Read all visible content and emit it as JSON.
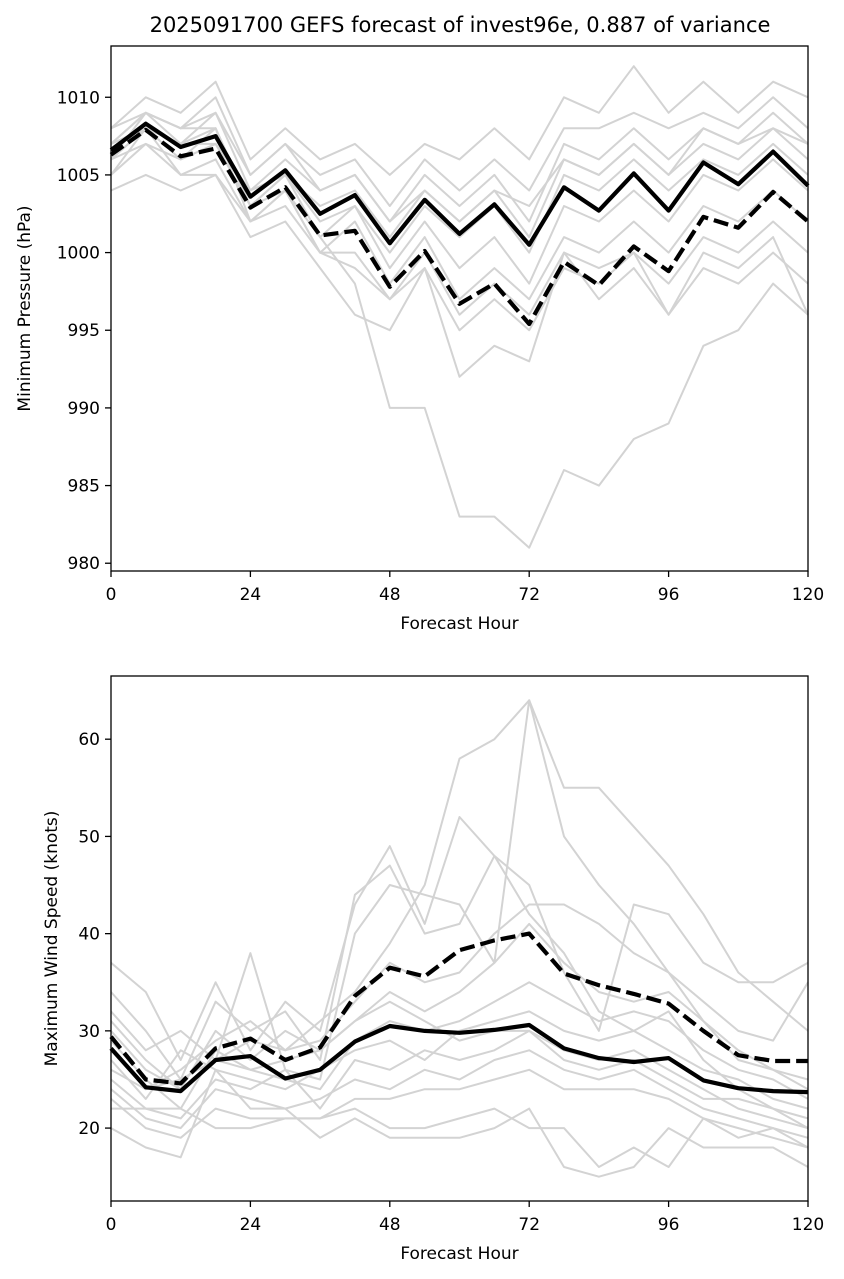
{
  "title": "2025091700 GEFS forecast of invest96e, 0.887 of variance",
  "chart_data": [
    {
      "type": "line",
      "title": "2025091700 GEFS forecast of invest96e, 0.887 of variance",
      "xlabel": "Forecast Hour",
      "ylabel": "Minimum Pressure (hPa)",
      "xlim": [
        0,
        120
      ],
      "ylim": [
        979.5,
        1013.3
      ],
      "xticks": [
        0,
        24,
        48,
        72,
        96,
        120
      ],
      "yticks": [
        980,
        985,
        990,
        995,
        1000,
        1005,
        1010
      ],
      "grid": false,
      "x": [
        0,
        6,
        12,
        18,
        24,
        30,
        36,
        42,
        48,
        54,
        60,
        66,
        72,
        78,
        84,
        90,
        96,
        102,
        108,
        114,
        120
      ],
      "colors": {
        "ensemble": "#d3d3d3",
        "highlight": "#000000"
      },
      "series": [
        {
          "role": "ensemble",
          "values": [
            1008,
            1010,
            1009,
            1011,
            1006,
            1008,
            1006,
            1007,
            1005,
            1007,
            1006,
            1008,
            1006,
            1010,
            1009,
            1012,
            1009,
            1011,
            1009,
            1011,
            1010
          ]
        },
        {
          "role": "ensemble",
          "values": [
            1007,
            1009,
            1008,
            1010,
            1005,
            1007,
            1005,
            1006,
            1003,
            1006,
            1004,
            1006,
            1004,
            1008,
            1008,
            1009,
            1008,
            1009,
            1008,
            1010,
            1008
          ]
        },
        {
          "role": "ensemble",
          "values": [
            1006,
            1009,
            1007,
            1009,
            1004,
            1006,
            1004,
            1005,
            1002,
            1005,
            1003,
            1005,
            1002,
            1007,
            1006,
            1008,
            1006,
            1008,
            1007,
            1009,
            1007
          ]
        },
        {
          "role": "ensemble",
          "values": [
            1006,
            1008,
            1007,
            1008,
            1003,
            1005,
            1003,
            1004,
            1001,
            1004,
            1002,
            1004,
            1001,
            1006,
            1005,
            1007,
            1005,
            1007,
            1006,
            1008,
            1006
          ]
        },
        {
          "role": "ensemble",
          "values": [
            1005,
            1008,
            1006,
            1008,
            1002,
            1004,
            1001,
            1003,
            1000,
            1003,
            1001,
            1003,
            1000,
            1005,
            1004,
            1006,
            1004,
            1006,
            1005,
            1007,
            1005
          ]
        },
        {
          "role": "ensemble",
          "values": [
            1007,
            1008,
            1007,
            1007,
            1004,
            1005,
            1002,
            1003,
            999,
            1002,
            999,
            1001,
            998,
            1003,
            1002,
            1004,
            1002,
            1005,
            1004,
            1006,
            1004
          ]
        },
        {
          "role": "ensemble",
          "values": [
            1006,
            1007,
            1006,
            1007,
            1003,
            1004,
            1000,
            1002,
            998,
            1001,
            997,
            999,
            997,
            1001,
            1000,
            1002,
            1000,
            1003,
            1002,
            1004,
            1002
          ]
        },
        {
          "role": "ensemble",
          "values": [
            1005,
            1007,
            1005,
            1006,
            1002,
            1003,
            1000,
            1000,
            997,
            999,
            995,
            997,
            995,
            999,
            998,
            1000,
            998,
            1001,
            1000,
            1002,
            1000
          ]
        },
        {
          "role": "ensemble",
          "values": [
            1004,
            1005,
            1004,
            1005,
            1001,
            1002,
            999,
            996,
            995,
            999,
            992,
            994,
            993,
            1000,
            997,
            999,
            996,
            999,
            998,
            1000,
            998
          ]
        },
        {
          "role": "ensemble",
          "values": [
            1006,
            1008,
            1005,
            1005,
            1002,
            1004,
            1000,
            999,
            997,
            1000,
            996,
            998,
            996,
            1000,
            999,
            1000,
            996,
            1000,
            999,
            1001,
            996
          ]
        },
        {
          "role": "ensemble",
          "values": [
            1007,
            1009,
            1008,
            1008,
            1003,
            1005,
            1001,
            998,
            990,
            990,
            983,
            983,
            981,
            986,
            985,
            988,
            989,
            994,
            995,
            998,
            996
          ]
        },
        {
          "role": "ensemble",
          "values": [
            1008,
            1009,
            1008,
            1009,
            1005,
            1007,
            1004,
            1005,
            1002,
            1004,
            1002,
            1004,
            1003,
            1006,
            1005,
            1007,
            1005,
            1008,
            1007,
            1008,
            1007
          ]
        },
        {
          "role": "highlight",
          "style": "solid",
          "values": [
            1006.6,
            1008.3,
            1006.8,
            1007.5,
            1003.6,
            1005.3,
            1002.5,
            1003.7,
            1000.6,
            1003.4,
            1001.2,
            1003.1,
            1000.5,
            1004.2,
            1002.7,
            1005.1,
            1002.7,
            1005.8,
            1004.4,
            1006.5,
            1004.3
          ]
        },
        {
          "role": "highlight",
          "style": "dashed",
          "values": [
            1006.3,
            1007.9,
            1006.2,
            1006.7,
            1002.9,
            1004.2,
            1001.1,
            1001.4,
            997.8,
            1000.1,
            996.7,
            998.0,
            995.4,
            999.4,
            997.9,
            1000.4,
            998.8,
            1002.3,
            1001.6,
            1003.9,
            1002.0
          ]
        }
      ]
    },
    {
      "type": "line",
      "xlabel": "Forecast Hour",
      "ylabel": "Maximum Wind Speed (knots)",
      "xlim": [
        0,
        120
      ],
      "ylim": [
        12.5,
        66.5
      ],
      "xticks": [
        0,
        24,
        48,
        72,
        96,
        120
      ],
      "yticks": [
        20,
        30,
        40,
        50,
        60
      ],
      "grid": false,
      "x": [
        0,
        6,
        12,
        18,
        24,
        30,
        36,
        42,
        48,
        54,
        60,
        66,
        72,
        78,
        84,
        90,
        96,
        102,
        108,
        114,
        120
      ],
      "colors": {
        "ensemble": "#d3d3d3",
        "highlight": "#000000"
      },
      "series": [
        {
          "role": "ensemble",
          "values": [
            37,
            34,
            27,
            35,
            28,
            33,
            30,
            43,
            49,
            41,
            52,
            48,
            42,
            38,
            32,
            30,
            32,
            27,
            24,
            22,
            20
          ]
        },
        {
          "role": "ensemble",
          "values": [
            34,
            30,
            25,
            33,
            30,
            32,
            27,
            44,
            47,
            40,
            41,
            48,
            45,
            36,
            30,
            43,
            42,
            37,
            35,
            35,
            37
          ]
        },
        {
          "role": "ensemble",
          "values": [
            30,
            26,
            24,
            27,
            38,
            26,
            25,
            40,
            45,
            44,
            43,
            37,
            64,
            55,
            55,
            51,
            47,
            42,
            36,
            33,
            30
          ]
        },
        {
          "role": "ensemble",
          "values": [
            32,
            28,
            30,
            27,
            29,
            28,
            31,
            34,
            39,
            45,
            58,
            60,
            64,
            50,
            45,
            41,
            36,
            31,
            28,
            26,
            24
          ]
        },
        {
          "role": "ensemble",
          "values": [
            28,
            24,
            26,
            29,
            31,
            28,
            29,
            33,
            37,
            35,
            36,
            40,
            43,
            43,
            41,
            38,
            36,
            33,
            30,
            29,
            35
          ]
        },
        {
          "role": "ensemble",
          "values": [
            31,
            27,
            24,
            30,
            27,
            30,
            28,
            31,
            34,
            32,
            34,
            37,
            41,
            37,
            34,
            33,
            34,
            31,
            27,
            26,
            25
          ]
        },
        {
          "role": "ensemble",
          "values": [
            29,
            25,
            22,
            28,
            26,
            25,
            24,
            29,
            31,
            30,
            31,
            33,
            35,
            33,
            31,
            32,
            31,
            28,
            26,
            25,
            23
          ]
        },
        {
          "role": "ensemble",
          "values": [
            27,
            23,
            28,
            26,
            25,
            24,
            26,
            28,
            29,
            27,
            30,
            31,
            32,
            30,
            29,
            30,
            28,
            26,
            25,
            23,
            22
          ]
        },
        {
          "role": "ensemble",
          "values": [
            25,
            22,
            21,
            25,
            24,
            26,
            22,
            27,
            26,
            28,
            27,
            28,
            30,
            28,
            27,
            28,
            26,
            24,
            22,
            21,
            20
          ]
        },
        {
          "role": "ensemble",
          "values": [
            24,
            21,
            20,
            24,
            23,
            22,
            23,
            25,
            24,
            26,
            25,
            27,
            28,
            26,
            25,
            26,
            24,
            22,
            21,
            20,
            19
          ]
        },
        {
          "role": "ensemble",
          "values": [
            23,
            20,
            19,
            22,
            21,
            21,
            21,
            23,
            23,
            24,
            24,
            25,
            26,
            24,
            24,
            24,
            23,
            21,
            20,
            19,
            18
          ]
        },
        {
          "role": "ensemble",
          "values": [
            20,
            18,
            17,
            26,
            22,
            22,
            19,
            21,
            19,
            19,
            19,
            20,
            22,
            16,
            15,
            16,
            20,
            18,
            18,
            18,
            16
          ]
        },
        {
          "role": "ensemble",
          "values": [
            22,
            22,
            22,
            20,
            20,
            21,
            21,
            22,
            20,
            20,
            21,
            22,
            20,
            20,
            16,
            18,
            16,
            21,
            19,
            20,
            18
          ]
        },
        {
          "role": "ensemble",
          "values": [
            26,
            24,
            25,
            27,
            26,
            27,
            28,
            31,
            33,
            31,
            29,
            30,
            30,
            27,
            26,
            27,
            25,
            23,
            23,
            22,
            21
          ]
        },
        {
          "role": "highlight",
          "style": "solid",
          "values": [
            28.2,
            24.2,
            23.8,
            27.0,
            27.4,
            25.1,
            26.0,
            28.9,
            30.5,
            30.0,
            29.8,
            30.1,
            30.6,
            28.2,
            27.2,
            26.8,
            27.2,
            24.9,
            24.1,
            23.8,
            23.7
          ]
        },
        {
          "role": "highlight",
          "style": "dashed",
          "values": [
            29.4,
            25.0,
            24.6,
            28.2,
            29.2,
            27.0,
            28.3,
            33.6,
            36.5,
            35.6,
            38.3,
            39.3,
            40.0,
            35.9,
            34.7,
            33.8,
            32.8,
            30.0,
            27.5,
            26.9,
            26.9
          ]
        }
      ]
    }
  ]
}
